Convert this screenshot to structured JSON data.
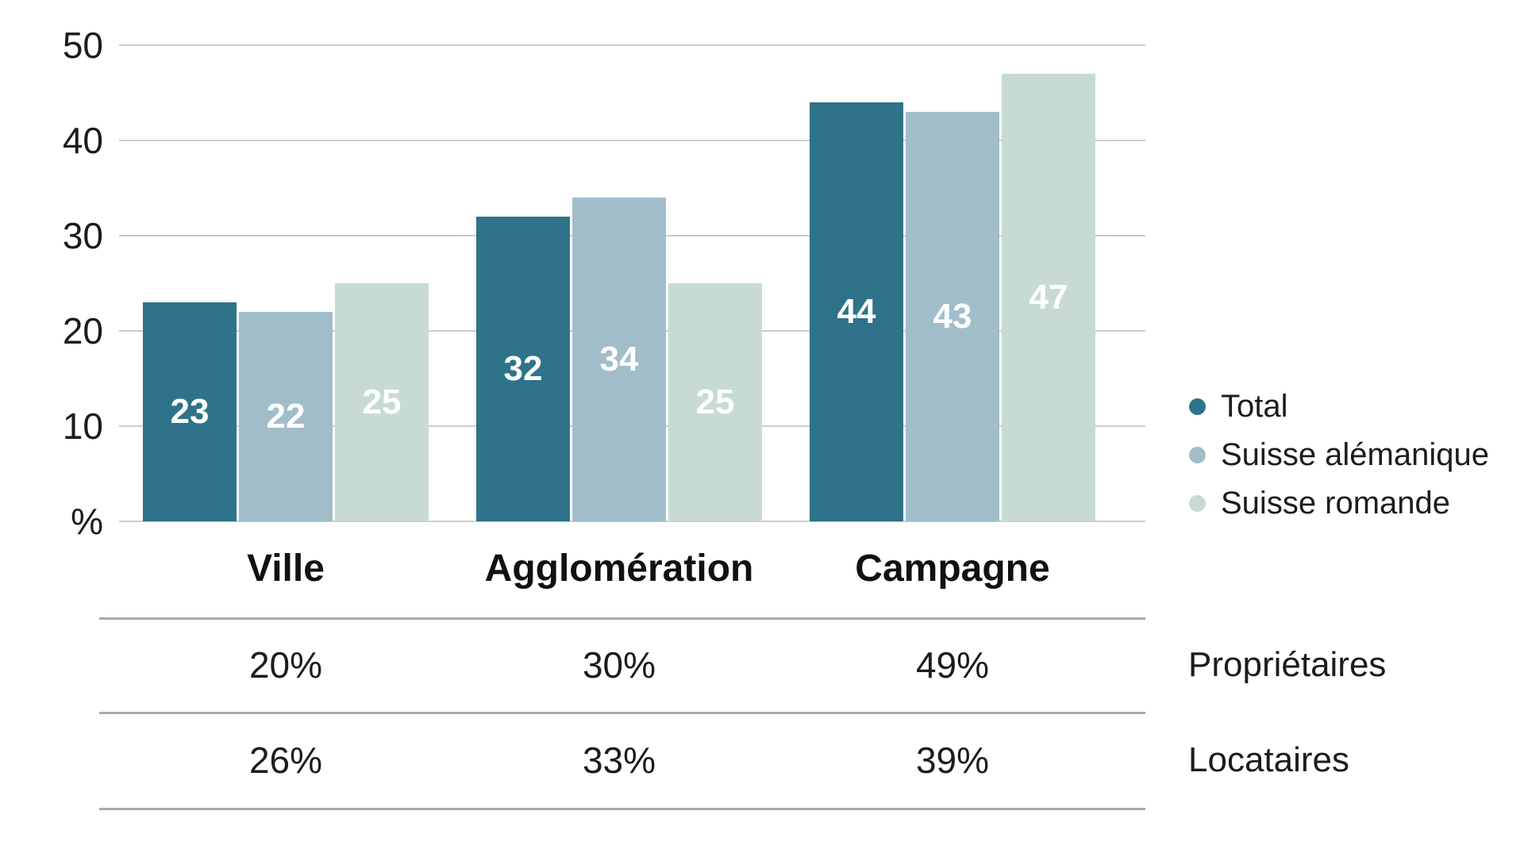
{
  "chart_data": {
    "type": "bar",
    "title": "",
    "categories": [
      "Ville",
      "Agglomération",
      "Campagne"
    ],
    "series": [
      {
        "name": "Total",
        "color": "#2E7389",
        "values": [
          23,
          32,
          44
        ]
      },
      {
        "name": "Suisse alémanique",
        "color": "#A1BDC9",
        "values": [
          22,
          34,
          43
        ]
      },
      {
        "name": "Suisse romande",
        "color": "#C7DBD3",
        "values": [
          25,
          25,
          47
        ]
      }
    ],
    "ylim": [
      0,
      50
    ],
    "yticks": [
      10,
      20,
      30,
      40,
      50
    ],
    "y_unit_label": "%",
    "grid": true,
    "legend_position": "right",
    "value_label_style": "inside-center-white",
    "table": {
      "rows": [
        {
          "label": "Propriétaires",
          "values": [
            "20%",
            "30%",
            "49%"
          ]
        },
        {
          "label": "Locataires",
          "values": [
            "26%",
            "33%",
            "39%"
          ]
        }
      ]
    }
  },
  "colors": {
    "background": "#FFFFFF",
    "gridline": "#CCCCCC",
    "table_rule": "#A9A9A9",
    "text": "#1C1C1C",
    "value_label": "#FFFFFF"
  }
}
